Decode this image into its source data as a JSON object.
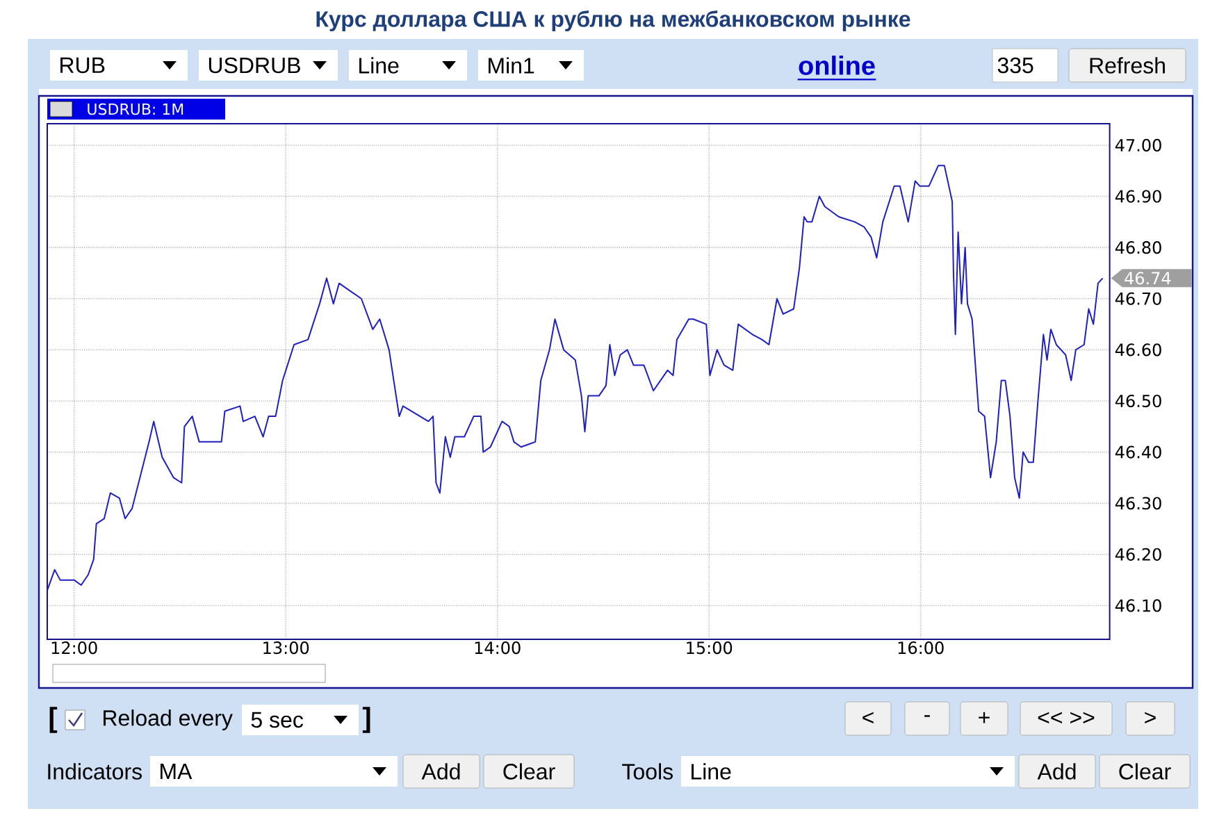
{
  "chart_data": {
    "type": "line",
    "title": "Курс доллара США к рублю на межбанковском рынке",
    "subtitle": "USDRUB: 1M",
    "xlim": [
      11.873,
      16.893
    ],
    "ylim": [
      46.034,
      47.042
    ],
    "xticks": [
      {
        "value": 12,
        "label": "12:00"
      },
      {
        "value": 13,
        "label": "13:00"
      },
      {
        "value": 14,
        "label": "14:00"
      },
      {
        "value": 15,
        "label": "15:00"
      },
      {
        "value": 16,
        "label": "16:00"
      }
    ],
    "yticks": [
      {
        "value": 46.1,
        "label": "46.10"
      },
      {
        "value": 46.2,
        "label": "46.20"
      },
      {
        "value": 46.3,
        "label": "46.30"
      },
      {
        "value": 46.4,
        "label": "46.40"
      },
      {
        "value": 46.5,
        "label": "46.50"
      },
      {
        "value": 46.6,
        "label": "46.60"
      },
      {
        "value": 46.7,
        "label": "46.70"
      },
      {
        "value": 46.8,
        "label": "46.80"
      },
      {
        "value": 46.9,
        "label": "46.90"
      },
      {
        "value": 47.0,
        "label": "47.00"
      }
    ],
    "grid": true,
    "marker": "none",
    "line_style": "solid",
    "series": [
      {
        "color": "#1f1fbf",
        "x": [
          11.873,
          11.908,
          11.934,
          11.967,
          12.0,
          12.033,
          12.066,
          12.092,
          12.105,
          12.142,
          12.171,
          12.214,
          12.241,
          12.274,
          12.317,
          12.354,
          12.376,
          12.416,
          12.47,
          12.508,
          12.521,
          12.558,
          12.591,
          12.635,
          12.696,
          12.712,
          12.784,
          12.799,
          12.854,
          12.893,
          12.919,
          12.952,
          12.985,
          13.039,
          13.105,
          13.16,
          13.193,
          13.225,
          13.252,
          13.357,
          13.411,
          13.444,
          13.488,
          13.536,
          13.554,
          13.674,
          13.696,
          13.71,
          13.728,
          13.754,
          13.777,
          13.799,
          13.844,
          13.888,
          13.922,
          13.933,
          13.967,
          14.022,
          14.056,
          14.078,
          14.112,
          14.179,
          14.205,
          14.246,
          14.272,
          14.313,
          14.368,
          14.397,
          14.413,
          14.429,
          14.48,
          14.513,
          14.531,
          14.554,
          14.58,
          14.614,
          14.643,
          14.692,
          14.737,
          14.804,
          14.83,
          14.848,
          14.904,
          14.926,
          14.987,
          15.004,
          15.038,
          15.071,
          15.112,
          15.138,
          15.205,
          15.25,
          15.283,
          15.321,
          15.35,
          15.4,
          15.427,
          15.449,
          15.464,
          15.486,
          15.521,
          15.547,
          15.613,
          15.689,
          15.733,
          15.766,
          15.792,
          15.821,
          15.875,
          15.902,
          15.941,
          15.974,
          15.996,
          16.039,
          16.083,
          16.112,
          16.149,
          16.155,
          16.164,
          16.177,
          16.193,
          16.21,
          16.221,
          16.243,
          16.274,
          16.302,
          16.33,
          16.357,
          16.381,
          16.4,
          16.422,
          16.444,
          16.466,
          16.484,
          16.51,
          16.532,
          16.554,
          16.58,
          16.597,
          16.615,
          16.641,
          16.685,
          16.711,
          16.733,
          16.772,
          16.794,
          16.816,
          16.838,
          16.86
        ],
        "values": [
          46.13,
          46.17,
          46.15,
          46.15,
          46.15,
          46.14,
          46.16,
          46.19,
          46.26,
          46.27,
          46.32,
          46.31,
          46.27,
          46.29,
          46.36,
          46.42,
          46.46,
          46.39,
          46.35,
          46.34,
          46.45,
          46.47,
          46.42,
          46.42,
          46.42,
          46.48,
          46.49,
          46.46,
          46.47,
          46.43,
          46.47,
          46.47,
          46.54,
          46.61,
          46.62,
          46.69,
          46.74,
          46.69,
          46.73,
          46.7,
          46.64,
          46.66,
          46.6,
          46.47,
          46.49,
          46.46,
          46.47,
          46.34,
          46.32,
          46.43,
          46.39,
          46.43,
          46.43,
          46.47,
          46.47,
          46.4,
          46.41,
          46.46,
          46.45,
          46.42,
          46.41,
          46.42,
          46.54,
          46.6,
          46.66,
          46.6,
          46.58,
          46.51,
          46.44,
          46.51,
          46.51,
          46.53,
          46.61,
          46.55,
          46.59,
          46.6,
          46.57,
          46.57,
          46.52,
          46.56,
          46.55,
          46.62,
          46.66,
          46.66,
          46.65,
          46.55,
          46.6,
          46.57,
          46.56,
          46.65,
          46.63,
          46.62,
          46.61,
          46.7,
          46.67,
          46.68,
          46.76,
          46.86,
          46.85,
          46.85,
          46.9,
          46.88,
          46.86,
          46.85,
          46.84,
          46.82,
          46.78,
          46.85,
          46.92,
          46.92,
          46.85,
          46.93,
          46.92,
          46.92,
          46.96,
          46.96,
          46.89,
          46.75,
          46.63,
          46.83,
          46.69,
          46.8,
          46.69,
          46.66,
          46.48,
          46.47,
          46.35,
          46.42,
          46.54,
          46.54,
          46.47,
          46.35,
          46.31,
          46.4,
          46.38,
          46.38,
          46.5,
          46.63,
          46.58,
          46.64,
          46.61,
          46.59,
          46.54,
          46.6,
          46.61,
          46.68,
          46.65,
          46.73,
          46.74
        ]
      }
    ],
    "annotations": [
      "46.74",
      "RUB",
      "USDRUB",
      "Line",
      "Min1",
      "online",
      "335",
      "Refresh",
      "[",
      "Reload every",
      "5 sec",
      "]",
      "<",
      "-",
      "+",
      "<< >>",
      ">",
      "Indicators",
      "MA",
      "Add",
      "Clear",
      "Tools",
      "Line",
      "Add",
      "Clear"
    ]
  }
}
